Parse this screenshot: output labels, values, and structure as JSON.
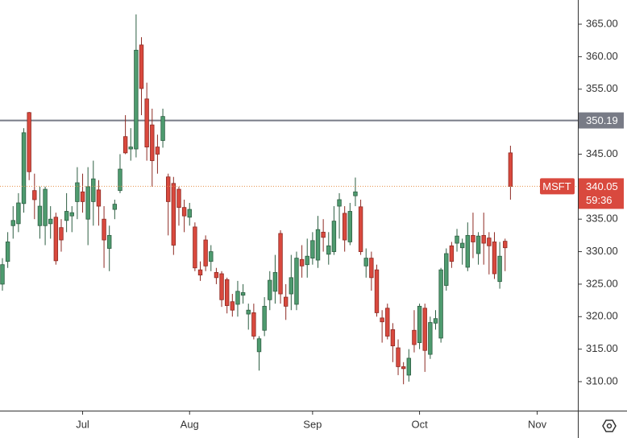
{
  "chart_data": {
    "type": "candlestick",
    "symbol": "MSFT",
    "countdown": "59:36",
    "up_color": "#4e9b6f",
    "down_color": "#d9493e",
    "open": [
      325,
      328.5,
      334,
      334.3,
      337.4,
      351.4,
      339.4,
      334,
      334,
      334.3,
      335.3,
      333.7,
      334.8,
      335.5,
      337.7,
      339.2,
      335,
      337.7,
      339.5,
      335,
      330.5,
      336.5,
      339.4,
      347.7,
      345.8,
      345.8,
      361.8,
      353.5,
      349.5,
      346.1,
      347.1,
      341.5,
      340.5,
      339.6,
      336.8,
      335.3,
      333.8,
      327.2,
      331.8,
      328.5,
      326.8,
      326.6,
      325.7,
      322.3,
      321.9,
      323.3,
      320.4,
      320.6,
      314.6,
      317.9,
      322.6,
      323.9,
      332.8,
      323,
      323.5,
      321.9,
      328.8,
      328,
      329,
      328.7,
      333,
      329.6,
      330,
      337,
      335.9,
      331.5,
      338.6,
      336.9,
      327.8,
      329,
      327.2,
      319.8,
      321.3,
      318,
      315.2,
      312.3,
      311,
      317.9,
      316,
      321.3,
      314.2,
      319,
      316.7,
      324.8,
      330.9,
      331.3,
      330.6,
      327.6,
      332.5,
      329.7,
      332.5,
      332.1,
      331.5,
      325.4,
      331.6,
      345.2
    ],
    "high": [
      329,
      333,
      337,
      339,
      349,
      351.5,
      342,
      340,
      340,
      337,
      336,
      335,
      339,
      337,
      343,
      342,
      343,
      344,
      341,
      337,
      334,
      338,
      345,
      351,
      349,
      366.5,
      363,
      356,
      352,
      348,
      352,
      342,
      341.5,
      340,
      338,
      337.5,
      334.5,
      328.5,
      332.5,
      331,
      327.5,
      327,
      326,
      323.5,
      325.5,
      325,
      322,
      322,
      317,
      323,
      327,
      329.5,
      333.3,
      325,
      329.5,
      330,
      331,
      332,
      333,
      335.5,
      335,
      333,
      337,
      339,
      337,
      337.5,
      341.4,
      338,
      330.5,
      330,
      328,
      321,
      322,
      319,
      316.5,
      313,
      315,
      321,
      322,
      322,
      320,
      321,
      327.5,
      330.5,
      331.5,
      333.5,
      332,
      334.5,
      336,
      333,
      336,
      333,
      333,
      331.5,
      332,
      346.3
    ],
    "low": [
      324,
      327.5,
      332,
      333,
      336,
      341,
      335,
      332,
      331,
      332,
      328,
      330,
      333,
      333,
      335,
      336,
      331,
      334,
      334,
      327.5,
      327,
      335,
      339,
      345,
      344,
      344.5,
      351,
      344,
      340,
      342,
      346,
      332.5,
      329.5,
      334,
      333,
      334,
      327,
      325.5,
      327,
      327,
      325,
      321.5,
      320.5,
      320,
      320,
      322,
      318,
      316.5,
      311.7,
      317,
      321,
      322,
      322,
      319.5,
      321,
      321,
      326,
      326,
      328,
      327.5,
      330,
      328,
      329.5,
      332,
      330,
      331,
      337,
      329.5,
      326,
      324,
      320,
      316,
      316.5,
      313,
      311,
      309.6,
      310,
      314.5,
      315,
      311.5,
      313.5,
      318,
      316,
      324,
      327.5,
      330,
      328,
      327,
      329,
      328,
      328,
      326.5,
      325.8,
      324.3,
      327,
      338
    ],
    "close": [
      328,
      331.5,
      334.8,
      337.5,
      348.3,
      342.3,
      338,
      337,
      339.6,
      335,
      328.6,
      331.8,
      336.2,
      336,
      340.6,
      337.7,
      340,
      341.2,
      337,
      331.8,
      332.5,
      337.3,
      342.7,
      345.2,
      346.1,
      361,
      355.1,
      346.1,
      344,
      345,
      350.8,
      337.7,
      331,
      336.8,
      335.5,
      336.5,
      327.5,
      326.4,
      327.8,
      330,
      326,
      322.6,
      321.7,
      321,
      323.9,
      323.7,
      321,
      317,
      316.6,
      321.6,
      325.6,
      326.8,
      323.5,
      321.6,
      326,
      329,
      327.8,
      329.3,
      331.7,
      333.4,
      332.2,
      330.9,
      334.7,
      338,
      331.8,
      336.2,
      339.2,
      330,
      329,
      326,
      320.6,
      319.2,
      317,
      315.5,
      312.3,
      312,
      313.6,
      315.7,
      321.6,
      314.8,
      319.1,
      319.7,
      327.2,
      329.7,
      328.5,
      332.4,
      331.3,
      332.5,
      331.5,
      332.4,
      331.3,
      330.9,
      326.6,
      329.3,
      330.6,
      340.05
    ],
    "hlines": [
      350.19
    ],
    "xlim": [
      -0.45,
      107.6
    ],
    "xticks": [
      {
        "value": 15,
        "label": "Jul"
      },
      {
        "value": 35,
        "label": "Aug"
      },
      {
        "value": 58,
        "label": "Sep"
      },
      {
        "value": 78,
        "label": "Oct"
      },
      {
        "value": 100,
        "label": "Nov"
      }
    ],
    "ylim": [
      305.54,
      368.72
    ],
    "yticks": [
      {
        "value": 310,
        "label": "310.00"
      },
      {
        "value": 315,
        "label": "315.00"
      },
      {
        "value": 320,
        "label": "320.00"
      },
      {
        "value": 325,
        "label": "325.00"
      },
      {
        "value": 330,
        "label": "330.00"
      },
      {
        "value": 335,
        "label": "335.00"
      },
      {
        "value": 340,
        "label": "340.00"
      },
      {
        "value": 345,
        "label": "345.00"
      },
      {
        "value": 350,
        "label": "350.00"
      },
      {
        "value": 355,
        "label": "355.00"
      },
      {
        "value": 360,
        "label": "360.00"
      },
      {
        "value": 365,
        "label": "365.00"
      }
    ]
  }
}
